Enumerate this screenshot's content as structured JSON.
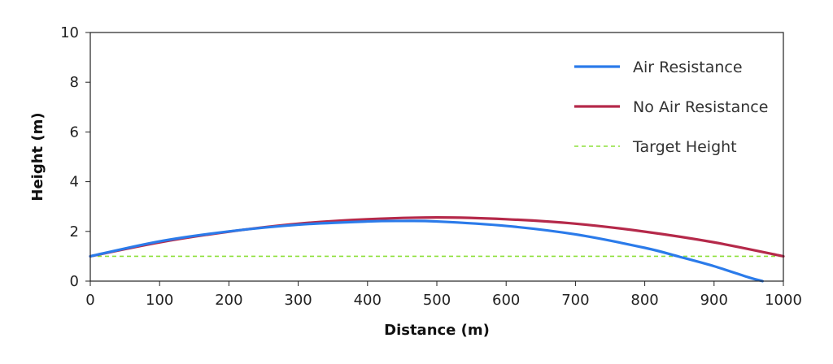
{
  "chart_data": {
    "type": "line",
    "title": "",
    "xlabel": "Distance (m)",
    "ylabel": "Height (m)",
    "xlim": [
      0,
      1000
    ],
    "ylim": [
      0,
      10
    ],
    "xticks": [
      0,
      100,
      200,
      300,
      400,
      500,
      600,
      700,
      800,
      900,
      1000
    ],
    "yticks": [
      0,
      2,
      4,
      6,
      8,
      10
    ],
    "grid": false,
    "legend_position": "top-right",
    "series": [
      {
        "name": "Air Resistance",
        "color": "#2b7bea",
        "style": "solid",
        "x": [
          0,
          100,
          200,
          300,
          400,
          450,
          500,
          600,
          700,
          800,
          850,
          900,
          950,
          970
        ],
        "y": [
          1.0,
          1.6,
          2.0,
          2.27,
          2.4,
          2.42,
          2.4,
          2.22,
          1.88,
          1.34,
          0.98,
          0.6,
          0.15,
          0
        ]
      },
      {
        "name": "No Air Resistance",
        "color": "#b5294a",
        "style": "solid",
        "x": [
          0,
          100,
          200,
          300,
          400,
          500,
          600,
          700,
          800,
          900,
          1000
        ],
        "y": [
          1.0,
          1.56,
          1.99,
          2.31,
          2.49,
          2.56,
          2.49,
          2.31,
          1.99,
          1.56,
          1.0
        ]
      },
      {
        "name": "Target Height",
        "color": "#8ee03a",
        "style": "dashed",
        "x": [
          0,
          1000
        ],
        "y": [
          1.0,
          1.0
        ]
      }
    ]
  }
}
